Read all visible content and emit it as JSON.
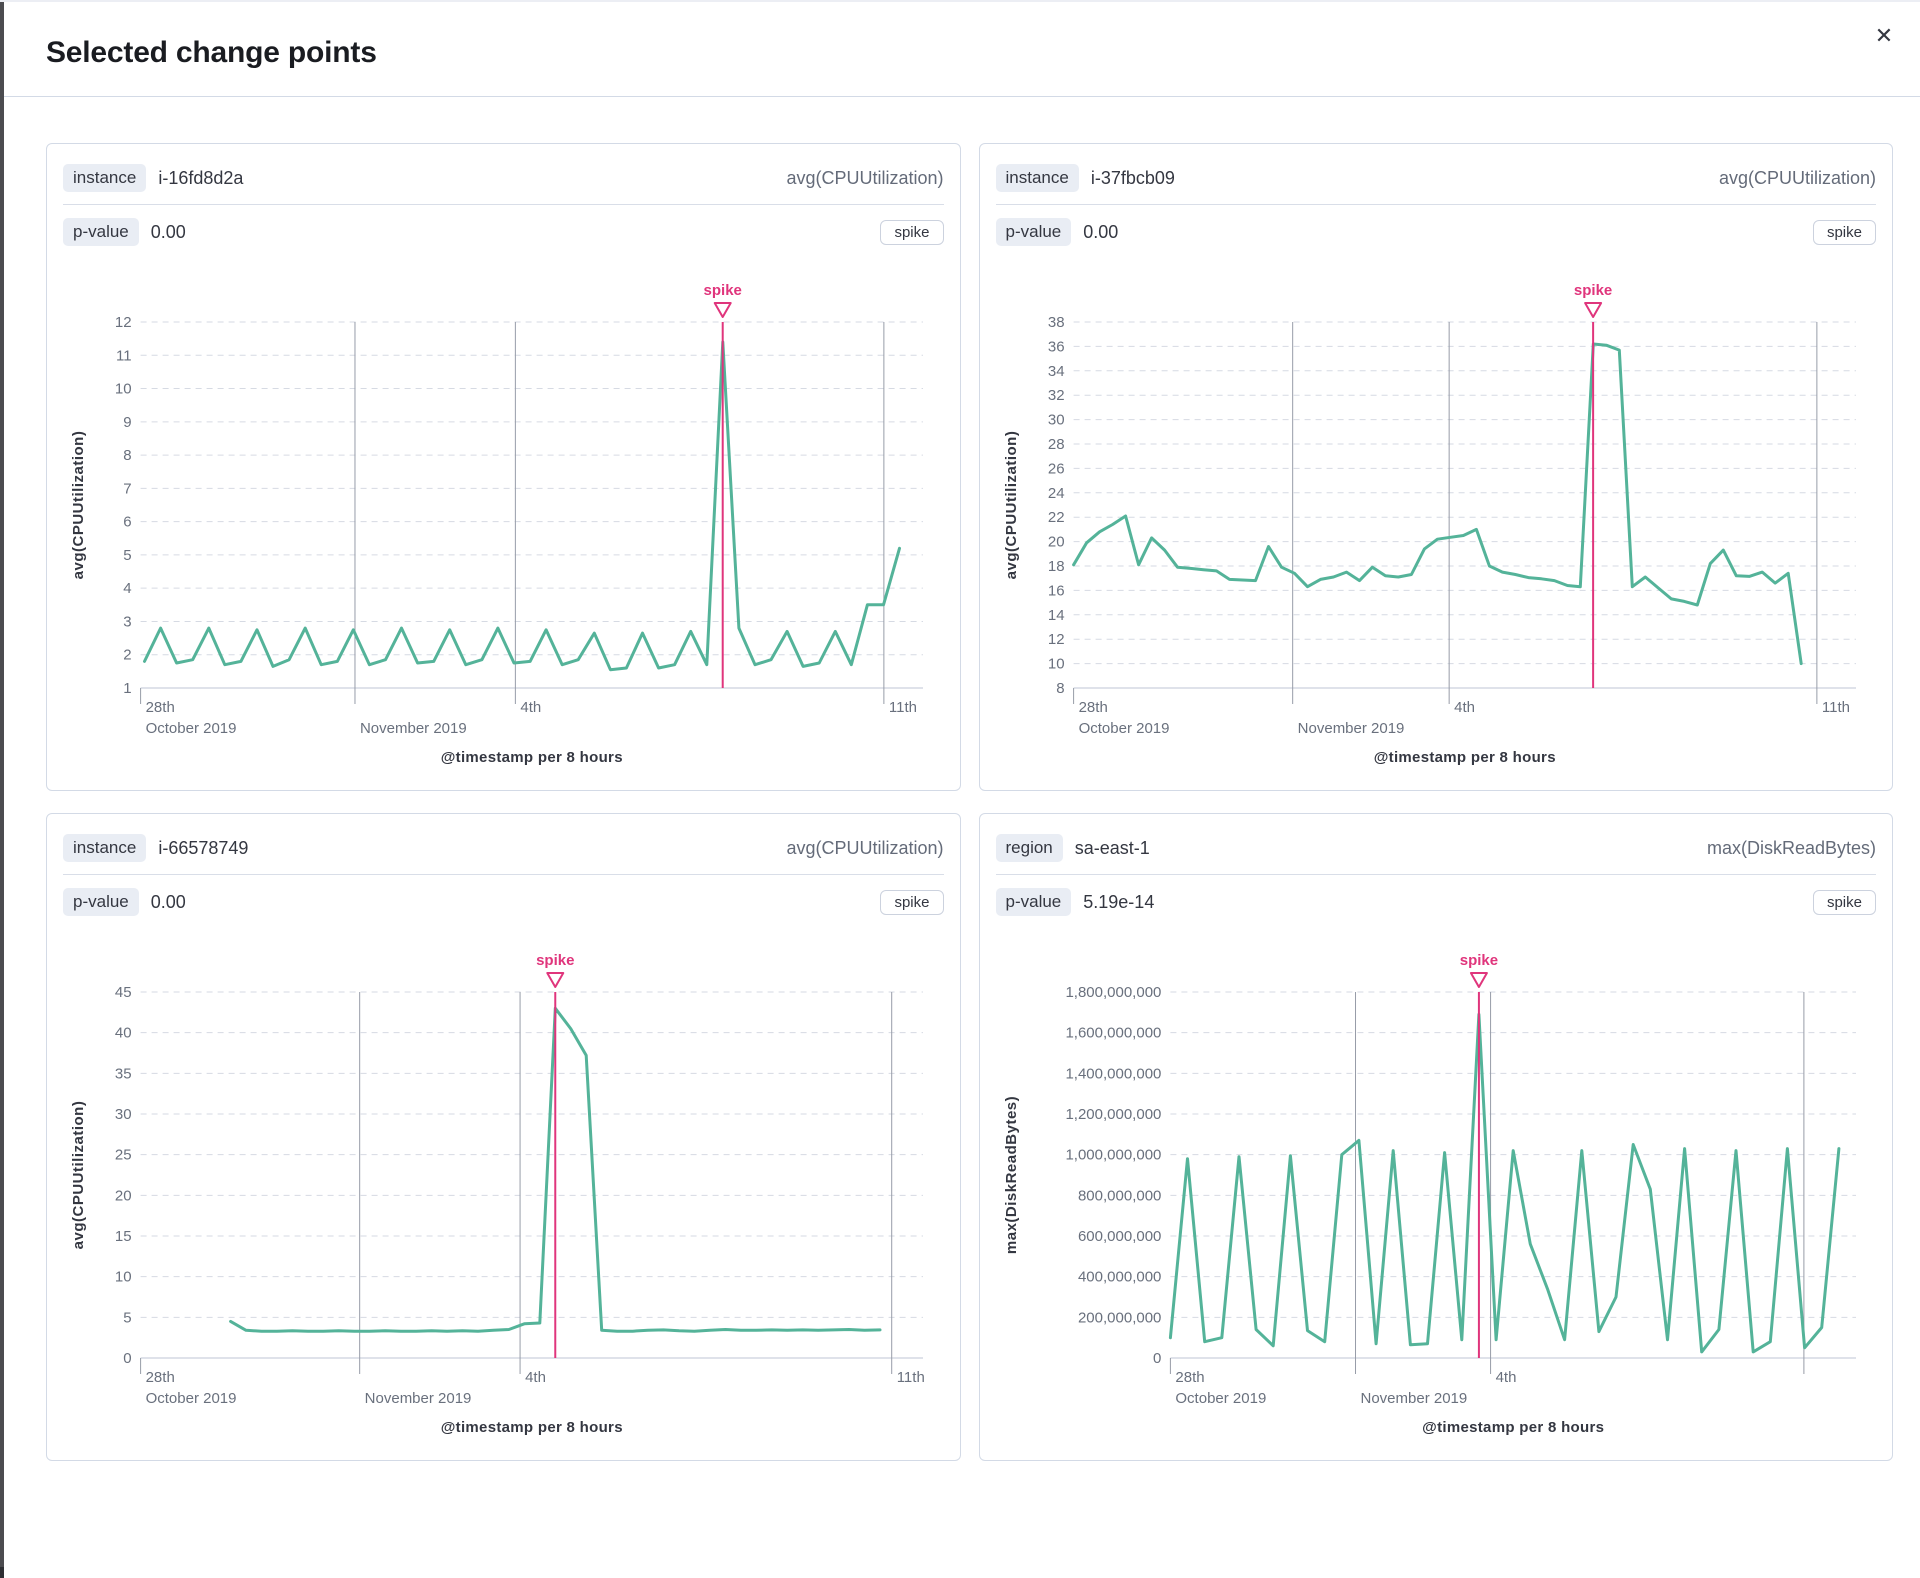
{
  "modal": {
    "title": "Selected change points",
    "close_icon": "✕"
  },
  "colors": {
    "series_green": "#54b399",
    "annotation_pink": "#e0357c",
    "grid_dash": "#d6dae3",
    "axis_line": "#ccd1dd",
    "date_line": "#979ca8",
    "tick_text": "#69707d",
    "axis_title_text": "#343741"
  },
  "cards": [
    {
      "key_label": "instance",
      "key_value": "i-16fd8d2a",
      "agg_label": "avg(CPUUtilization)",
      "p_label": "p-value",
      "p_value": "0.00",
      "type_badge": "spike"
    },
    {
      "key_label": "instance",
      "key_value": "i-37fbcb09",
      "agg_label": "avg(CPUUtilization)",
      "p_label": "p-value",
      "p_value": "0.00",
      "type_badge": "spike"
    },
    {
      "key_label": "instance",
      "key_value": "i-66578749",
      "agg_label": "avg(CPUUtilization)",
      "p_label": "p-value",
      "p_value": "0.00",
      "type_badge": "spike"
    },
    {
      "key_label": "region",
      "key_value": "sa-east-1",
      "agg_label": "max(DiskReadBytes)",
      "p_label": "p-value",
      "p_value": "5.19e-14",
      "type_badge": "spike"
    }
  ],
  "chart_data": [
    {
      "type": "line",
      "title": "instance i-16fd8d2a change point",
      "ylabel": "avg(CPUUtilization)",
      "xlabel": "@timestamp per 8 hours",
      "ymin": 1,
      "ymax": 12,
      "ytick_step": 1,
      "ytick_format": "plain",
      "grid": true,
      "legend": false,
      "annotation": {
        "label": "spike",
        "pos": 0.744
      },
      "x_gridlines": [
        0.274,
        0.479,
        0.95
      ],
      "x_tick_pos": 0,
      "x_labels": [
        {
          "pos": 0,
          "line1": "28th",
          "line2": "October 2019"
        },
        {
          "pos": 0.274,
          "line1": "",
          "line2": "November 2019"
        },
        {
          "pos": 0.479,
          "line1": "4th",
          "line2": ""
        },
        {
          "pos": 0.95,
          "line1": "11th",
          "line2": ""
        }
      ],
      "series": {
        "name": "avg(CPUUtilization)",
        "x_start": 0.005,
        "x_end": 0.97,
        "values": [
          1.8,
          2.8,
          1.75,
          1.85,
          2.8,
          1.7,
          1.8,
          2.75,
          1.65,
          1.85,
          2.8,
          1.7,
          1.8,
          2.75,
          1.7,
          1.85,
          2.8,
          1.75,
          1.8,
          2.75,
          1.7,
          1.85,
          2.8,
          1.75,
          1.8,
          2.75,
          1.7,
          1.85,
          2.65,
          1.55,
          1.6,
          2.65,
          1.6,
          1.7,
          2.7,
          1.7,
          11.4,
          2.8,
          1.7,
          1.85,
          2.7,
          1.65,
          1.75,
          2.7,
          1.7,
          3.5,
          3.5,
          5.2
        ]
      }
    },
    {
      "type": "line",
      "title": "instance i-37fbcb09 change point",
      "ylabel": "avg(CPUUtilization)",
      "xlabel": "@timestamp per 8 hours",
      "ymin": 8,
      "ymax": 38,
      "ytick_step": 2,
      "ytick_format": "plain",
      "grid": true,
      "legend": false,
      "annotation": {
        "label": "spike",
        "pos": 0.664
      },
      "x_gridlines": [
        0.28,
        0.48,
        0.95
      ],
      "x_tick_pos": 0,
      "x_labels": [
        {
          "pos": 0,
          "line1": "28th",
          "line2": "October 2019"
        },
        {
          "pos": 0.28,
          "line1": "",
          "line2": "November 2019"
        },
        {
          "pos": 0.48,
          "line1": "4th",
          "line2": ""
        },
        {
          "pos": 0.95,
          "line1": "11th",
          "line2": ""
        }
      ],
      "series": {
        "name": "avg(CPUUtilization)",
        "x_start": 0.0,
        "x_end": 0.93,
        "values": [
          18.1,
          19.9,
          20.8,
          21.4,
          22.1,
          18.1,
          20.3,
          19.3,
          17.9,
          17.8,
          17.7,
          17.6,
          16.9,
          16.85,
          16.8,
          19.6,
          17.9,
          17.4,
          16.3,
          16.9,
          17.1,
          17.5,
          16.8,
          17.9,
          17.2,
          17.1,
          17.3,
          19.4,
          20.2,
          20.35,
          20.5,
          21.0,
          18.0,
          17.5,
          17.3,
          17.05,
          16.95,
          16.8,
          16.4,
          16.3,
          36.2,
          36.1,
          35.7,
          16.3,
          17.1,
          16.2,
          15.3,
          15.1,
          14.8,
          18.2,
          19.3,
          17.2,
          17.15,
          17.5,
          16.6,
          17.4,
          10.0
        ]
      }
    },
    {
      "type": "line",
      "title": "instance i-66578749 change point",
      "ylabel": "avg(CPUUtilization)",
      "xlabel": "@timestamp per 8 hours",
      "ymin": 0,
      "ymax": 45,
      "ytick_step": 5,
      "ytick_format": "plain",
      "grid": true,
      "legend": false,
      "annotation": {
        "label": "spike",
        "pos": 0.53
      },
      "x_gridlines": [
        0.28,
        0.485,
        0.96
      ],
      "x_tick_pos": 0,
      "x_labels": [
        {
          "pos": 0,
          "line1": "28th",
          "line2": "October 2019"
        },
        {
          "pos": 0.28,
          "line1": "",
          "line2": "November 2019"
        },
        {
          "pos": 0.485,
          "line1": "4th",
          "line2": ""
        },
        {
          "pos": 0.96,
          "line1": "11th",
          "line2": ""
        }
      ],
      "series": {
        "name": "avg(CPUUtilization)",
        "x_start": 0.115,
        "x_end": 0.945,
        "values": [
          4.5,
          3.4,
          3.3,
          3.3,
          3.35,
          3.3,
          3.3,
          3.35,
          3.3,
          3.3,
          3.35,
          3.3,
          3.3,
          3.35,
          3.3,
          3.35,
          3.3,
          3.4,
          3.5,
          4.2,
          4.3,
          43.0,
          40.5,
          37.2,
          3.4,
          3.3,
          3.3,
          3.4,
          3.45,
          3.35,
          3.3,
          3.4,
          3.5,
          3.4,
          3.4,
          3.45,
          3.4,
          3.45,
          3.4,
          3.45,
          3.5,
          3.4,
          3.45
        ]
      }
    },
    {
      "type": "line",
      "title": "region sa-east-1 change point",
      "ylabel": "max(DiskReadBytes)",
      "xlabel": "@timestamp per 8 hours",
      "ymin": 0,
      "ymax": 1800000000,
      "ytick_step": 200000000,
      "ytick_format": "comma",
      "grid": true,
      "legend": false,
      "annotation": {
        "label": "spike",
        "pos": 0.45
      },
      "x_gridlines": [
        0.27,
        0.467,
        0.924
      ],
      "x_tick_pos": 0,
      "x_labels": [
        {
          "pos": 0,
          "line1": "28th",
          "line2": "October 2019"
        },
        {
          "pos": 0.27,
          "line1": "",
          "line2": "November 2019"
        },
        {
          "pos": 0.467,
          "line1": "4th",
          "line2": ""
        }
      ],
      "series": {
        "name": "max(DiskReadBytes)",
        "x_start": 0.0,
        "x_end": 0.975,
        "values": [
          100000000,
          980000000,
          80000000,
          100000000,
          990000000,
          140000000,
          60000000,
          995000000,
          135000000,
          80000000,
          1000000000,
          1070000000,
          70000000,
          1020000000,
          65000000,
          70000000,
          1010000000,
          90000000,
          1690000000,
          90000000,
          1020000000,
          560000000,
          340000000,
          90000000,
          1020000000,
          130000000,
          300000000,
          1050000000,
          830000000,
          90000000,
          1030000000,
          30000000,
          140000000,
          1020000000,
          30000000,
          80000000,
          1030000000,
          50000000,
          150000000,
          1030000000
        ]
      }
    }
  ]
}
